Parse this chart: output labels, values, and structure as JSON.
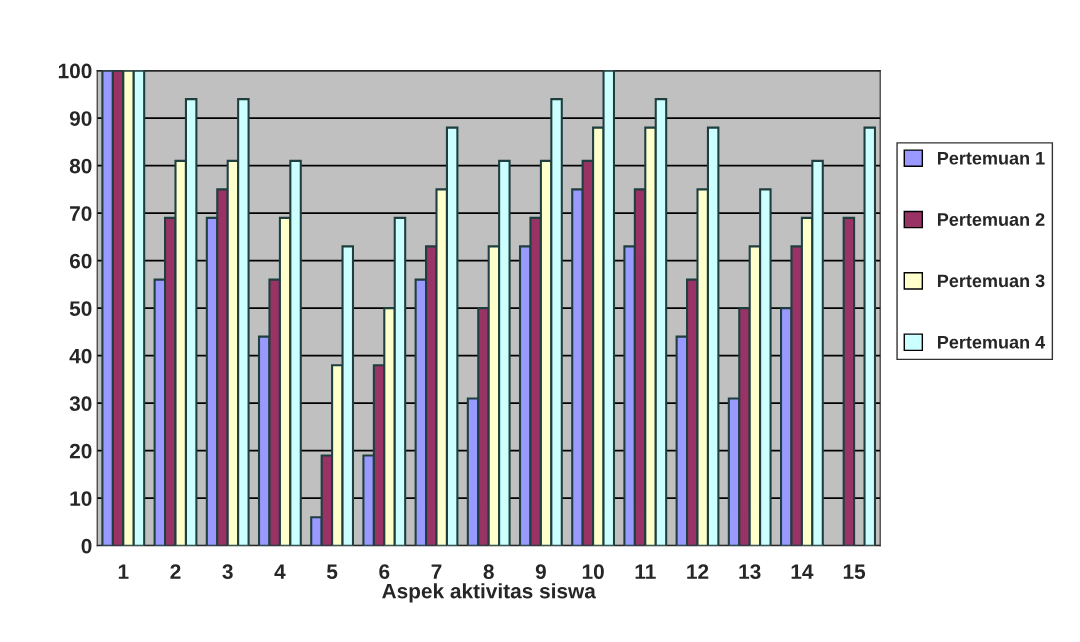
{
  "chart_data": {
    "type": "bar",
    "xlabel": "Aspek aktivitas siswa",
    "categories": [
      "1",
      "2",
      "3",
      "4",
      "5",
      "6",
      "7",
      "8",
      "9",
      "10",
      "11",
      "12",
      "13",
      "14",
      "15"
    ],
    "series": [
      {
        "name": "Pertemuan 1",
        "color": "#9999ff",
        "values": [
          100,
          56,
          69,
          44,
          6,
          19,
          56,
          31,
          63,
          75,
          63,
          44,
          31,
          50,
          null
        ]
      },
      {
        "name": "Pertemuan 2",
        "color": "#993366",
        "values": [
          100,
          69,
          75,
          56,
          19,
          38,
          63,
          50,
          69,
          81,
          75,
          56,
          50,
          63,
          69
        ]
      },
      {
        "name": "Pertemuan 3",
        "color": "#ffffcc",
        "values": [
          100,
          81,
          81,
          69,
          38,
          50,
          75,
          63,
          81,
          88,
          88,
          75,
          63,
          69,
          null
        ]
      },
      {
        "name": "Pertemuan 4",
        "color": "#ccffff",
        "values": [
          100,
          94,
          94,
          81,
          63,
          69,
          88,
          81,
          94,
          100,
          94,
          88,
          75,
          81,
          88
        ]
      }
    ],
    "ylim": [
      0,
      100
    ],
    "yticks": [
      0,
      10,
      20,
      30,
      40,
      50,
      60,
      70,
      80,
      90,
      100
    ],
    "grid": "y",
    "legend": "right"
  }
}
